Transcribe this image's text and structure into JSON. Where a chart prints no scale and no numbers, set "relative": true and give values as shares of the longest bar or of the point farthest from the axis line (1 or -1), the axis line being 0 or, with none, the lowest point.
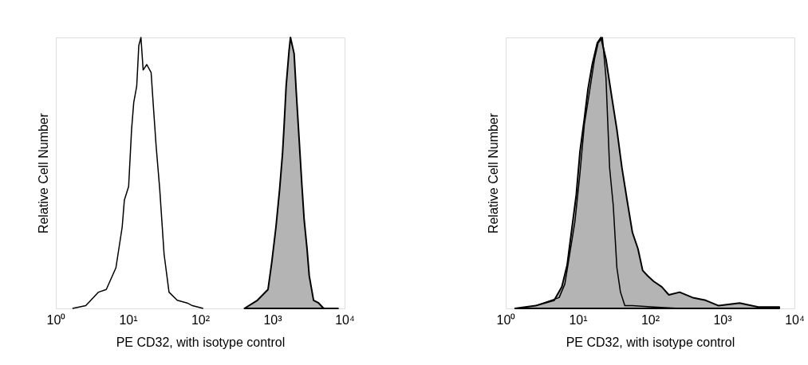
{
  "chart_data": [
    {
      "type": "area",
      "relative": true,
      "log": "x",
      "grid": false,
      "xlabel": "PE CD32, with isotype control",
      "ylabel": "Relative Cell Number",
      "xlim": [
        1,
        10000
      ],
      "xticks": [
        {
          "value": 1,
          "label": "10⁰"
        },
        {
          "value": 10,
          "label": "10¹"
        },
        {
          "value": 100,
          "label": "10²"
        },
        {
          "value": 1000,
          "label": "10³"
        },
        {
          "value": 10000,
          "label": "10⁴"
        }
      ],
      "series": [
        {
          "color": "#b4b4b4",
          "x": [
            410,
            620,
            870,
            980,
            1120,
            1260,
            1380,
            1450,
            1550,
            1700,
            1780,
            2000,
            2140,
            2340,
            2570,
            2750,
            3020,
            3240,
            3720,
            4370,
            5130,
            8130
          ],
          "values": [
            0,
            0.03,
            0.07,
            0.17,
            0.3,
            0.44,
            0.57,
            0.67,
            0.82,
            0.95,
            1.0,
            0.94,
            0.8,
            0.63,
            0.45,
            0.33,
            0.22,
            0.12,
            0.03,
            0.02,
            0,
            0
          ]
        },
        {
          "type": "line",
          "color": "#000000",
          "x": [
            1.7,
            2.6,
            3.9,
            5.0,
            6.8,
            8.3,
            8.9,
            10.2,
            11.2,
            12.0,
            13.2,
            14.1,
            15.1,
            16.2,
            18.2,
            20.9,
            22.4,
            24.5,
            27.5,
            31.6,
            37,
            48,
            66,
            78,
            110
          ],
          "values": [
            0,
            0.01,
            0.06,
            0.07,
            0.15,
            0.3,
            0.4,
            0.45,
            0.66,
            0.76,
            0.82,
            0.97,
            1.0,
            0.88,
            0.9,
            0.87,
            0.75,
            0.6,
            0.44,
            0.2,
            0.06,
            0.03,
            0.02,
            0.01,
            0
          ]
        }
      ]
    },
    {
      "type": "area",
      "relative": true,
      "log": "x",
      "grid": false,
      "xlabel": "PE CD32, with isotype control",
      "ylabel": "Relative Cell Number",
      "xlim": [
        1,
        10000
      ],
      "xticks": [
        {
          "value": 1,
          "label": "10⁰"
        },
        {
          "value": 10,
          "label": "10¹"
        },
        {
          "value": 100,
          "label": "10²"
        },
        {
          "value": 1000,
          "label": "10³"
        },
        {
          "value": 10000,
          "label": "10⁴"
        }
      ],
      "series": [
        {
          "color": "#b4b4b4",
          "x": [
            1.35,
            2.6,
            4.7,
            6.0,
            7.1,
            8.3,
            9.5,
            10.7,
            12.3,
            13.8,
            15.8,
            18.6,
            20.9,
            24.5,
            29.5,
            34.7,
            40.7,
            48,
            57,
            68,
            79,
            93,
            112,
            145,
            182,
            257,
            389,
            589,
            891,
            1740,
            3160,
            6170
          ],
          "values": [
            0,
            0.01,
            0.03,
            0.08,
            0.16,
            0.3,
            0.42,
            0.58,
            0.7,
            0.81,
            0.9,
            0.98,
            1.0,
            0.92,
            0.78,
            0.66,
            0.52,
            0.4,
            0.28,
            0.22,
            0.14,
            0.12,
            0.1,
            0.08,
            0.05,
            0.06,
            0.04,
            0.03,
            0.01,
            0.02,
            0.005,
            0.005
          ]
        },
        {
          "type": "line",
          "color": "#000000",
          "x": [
            2.6,
            5.5,
            6.6,
            7.7,
            9.1,
            10.7,
            12.3,
            14.5,
            17.0,
            19.1,
            21.9,
            24.5,
            27.5,
            30.9,
            34.7,
            38.9,
            44.7,
            57,
            112,
            257
          ],
          "values": [
            0.01,
            0.04,
            0.09,
            0.2,
            0.32,
            0.5,
            0.68,
            0.8,
            0.92,
            0.98,
            1.0,
            0.85,
            0.52,
            0.38,
            0.15,
            0.06,
            0.01,
            0.01,
            0.005,
            0
          ]
        }
      ]
    }
  ]
}
